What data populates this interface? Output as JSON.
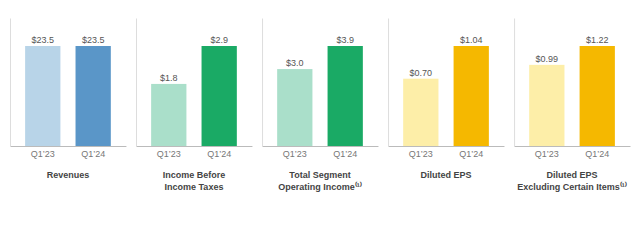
{
  "chart_data": [
    {
      "type": "bar",
      "xlabel": "Revenues",
      "categories": [
        "Q1’23",
        "Q1’24"
      ],
      "values": [
        23.5,
        23.5
      ],
      "value_labels": [
        "$23.5",
        "$23.5"
      ],
      "colors": [
        "#b8d4e8",
        "#5a96c8"
      ],
      "ylim": [
        0,
        30.08
      ],
      "data_labels": true,
      "tick_labels": "x"
    },
    {
      "type": "bar",
      "xlabel": "Income Before\nIncome Taxes",
      "categories": [
        "Q1’23",
        "Q1’24"
      ],
      "values": [
        1.8,
        2.9
      ],
      "value_labels": [
        "$1.8",
        "$2.9"
      ],
      "colors": [
        "#aadfca",
        "#1aaa65"
      ],
      "ylim": [
        0,
        3.712
      ],
      "data_labels": true,
      "tick_labels": "x"
    },
    {
      "type": "bar",
      "xlabel": "Total Segment\nOperating Income⁽¹⁾",
      "categories": [
        "Q1’23",
        "Q1’24"
      ],
      "values": [
        3.0,
        3.9
      ],
      "value_labels": [
        "$3.0",
        "$3.9"
      ],
      "colors": [
        "#aadfca",
        "#1aaa65"
      ],
      "ylim": [
        0,
        4.992
      ],
      "data_labels": true,
      "tick_labels": "x"
    },
    {
      "type": "bar",
      "xlabel": "Diluted EPS",
      "categories": [
        "Q1’23",
        "Q1’24"
      ],
      "values": [
        0.7,
        1.04
      ],
      "value_labels": [
        "$0.70",
        "$1.04"
      ],
      "colors": [
        "#fdeea8",
        "#f5b800"
      ],
      "ylim": [
        0,
        1.3312
      ],
      "data_labels": true,
      "tick_labels": "x"
    },
    {
      "type": "bar",
      "xlabel": "Diluted EPS\nExcluding Certain Items⁽¹⁾",
      "categories": [
        "Q1’23",
        "Q1’24"
      ],
      "values": [
        0.99,
        1.22
      ],
      "value_labels": [
        "$0.99",
        "$1.22"
      ],
      "colors": [
        "#fdeea8",
        "#f5b800"
      ],
      "ylim": [
        0,
        1.5616
      ],
      "data_labels": true,
      "tick_labels": "x"
    }
  ]
}
